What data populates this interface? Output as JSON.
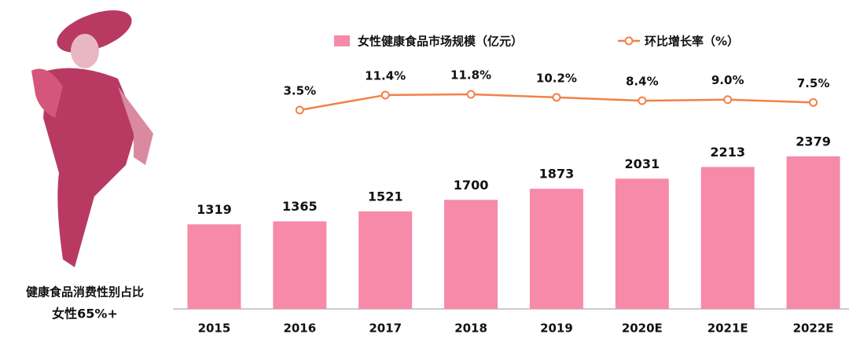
{
  "chart_data": {
    "type": "bar",
    "categories": [
      "2015",
      "2016",
      "2017",
      "2018",
      "2019",
      "2020E",
      "2021E",
      "2022E"
    ],
    "series": [
      {
        "name": "女性健康食品市场规模（亿元）",
        "color": "#f78aa9",
        "values": [
          1319,
          1365,
          1521,
          1700,
          1873,
          2031,
          2213,
          2379
        ]
      },
      {
        "name": "环比增长率（%）",
        "color": "#f0824a",
        "type": "line",
        "axis": "y2",
        "values": [
          null,
          3.5,
          11.4,
          11.8,
          10.2,
          8.4,
          9.0,
          7.5
        ],
        "value_labels": [
          null,
          "3.5%",
          "11.4%",
          "11.8%",
          "10.2%",
          "8.4%",
          "9.0%",
          "7.5%"
        ]
      }
    ],
    "ylim": [
      0,
      2500
    ],
    "y2lim": [
      0,
      12
    ],
    "caption": [
      "健康食品消费性别占比",
      "女性65%+"
    ]
  }
}
